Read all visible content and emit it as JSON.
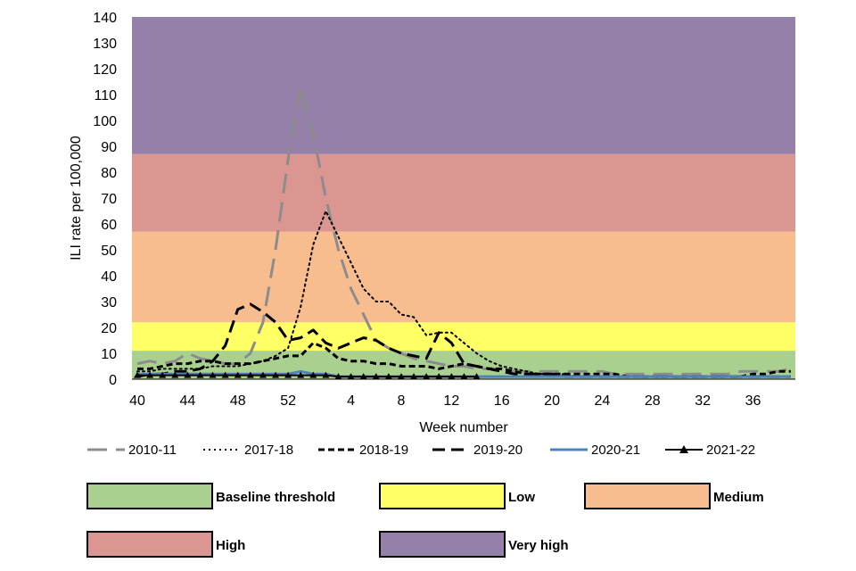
{
  "chart_data": {
    "type": "line",
    "title": "",
    "xlabel": "Week number",
    "ylabel": "ILI rate per 100,000",
    "ylim": [
      0,
      140
    ],
    "y_ticks": [
      "0",
      "10",
      "20",
      "30",
      "40",
      "50",
      "60",
      "70",
      "80",
      "90",
      "100",
      "110",
      "120",
      "130",
      "140"
    ],
    "x_tick_labels": [
      "40",
      "44",
      "48",
      "52",
      "4",
      "8",
      "12",
      "16",
      "20",
      "24",
      "28",
      "32",
      "36"
    ],
    "x_week_order": [
      40,
      41,
      42,
      43,
      44,
      45,
      46,
      47,
      48,
      49,
      50,
      51,
      52,
      53,
      1,
      2,
      3,
      4,
      5,
      6,
      7,
      8,
      9,
      10,
      11,
      12,
      13,
      14,
      15,
      16,
      17,
      18,
      19,
      20,
      21,
      22,
      23,
      24,
      25,
      26,
      27,
      28,
      29,
      30,
      31,
      32,
      33,
      34,
      35,
      36,
      37,
      38,
      39
    ],
    "threshold_bands": [
      {
        "name": "Baseline threshold",
        "from": 0,
        "to": 11,
        "color": "#a9d08e"
      },
      {
        "name": "Low",
        "from": 11,
        "to": 22,
        "color": "#ffff66"
      },
      {
        "name": "Medium",
        "from": 22,
        "to": 57,
        "color": "#f8bd8f"
      },
      {
        "name": "High",
        "from": 57,
        "to": 87,
        "color": "#db9691"
      },
      {
        "name": "Very high",
        "from": 87,
        "to": 140,
        "color": "#9480a8"
      }
    ],
    "series": [
      {
        "name": "2010-11",
        "color": "#8c8c8c",
        "style": "longdash",
        "values": [
          6,
          7,
          6,
          7,
          10,
          8,
          7,
          6,
          6,
          10,
          22,
          50,
          85,
          113,
          95,
          70,
          50,
          35,
          25,
          15,
          12,
          10,
          8,
          7,
          6,
          5,
          5,
          4,
          4,
          4,
          3,
          3,
          3,
          3,
          3,
          3,
          3,
          3,
          2,
          2,
          2,
          2,
          2,
          2,
          2,
          2,
          2,
          2,
          3,
          3,
          3,
          3,
          4
        ]
      },
      {
        "name": "2017-18",
        "color": "#000000",
        "style": "dotted",
        "values": [
          3,
          3,
          4,
          4,
          4,
          4,
          5,
          5,
          5,
          6,
          7,
          9,
          12,
          28,
          52,
          65,
          55,
          45,
          35,
          30,
          30,
          25,
          24,
          17,
          18,
          18,
          14,
          10,
          7,
          5,
          4,
          3,
          2,
          2,
          2,
          1,
          1,
          1,
          1,
          1,
          1,
          1,
          1,
          1,
          1,
          1,
          1,
          1,
          1,
          1,
          1,
          1,
          1
        ]
      },
      {
        "name": "2018-19",
        "color": "#000000",
        "style": "shortdash",
        "values": [
          4,
          4,
          5,
          6,
          6,
          7,
          7,
          6,
          6,
          6,
          7,
          8,
          9,
          9,
          14,
          12,
          8,
          7,
          7,
          6,
          6,
          5,
          5,
          5,
          4,
          5,
          6,
          5,
          4,
          4,
          3,
          2,
          2,
          2,
          2,
          2,
          2,
          2,
          2,
          1,
          1,
          1,
          1,
          1,
          1,
          1,
          1,
          1,
          1,
          2,
          2,
          3,
          3
        ]
      },
      {
        "name": "2019-20",
        "color": "#000000",
        "style": "dash",
        "values": [
          1,
          2,
          2,
          3,
          3,
          4,
          7,
          13,
          27,
          29,
          26,
          22,
          15,
          16,
          19,
          14,
          12,
          14,
          16,
          15,
          12,
          10,
          9,
          8,
          18,
          14,
          6,
          5,
          4,
          3,
          2,
          2,
          2,
          2,
          1,
          1,
          1,
          1,
          1,
          1,
          1,
          1,
          1,
          1,
          1,
          1,
          1,
          1,
          1,
          1,
          1,
          1,
          1
        ]
      },
      {
        "name": "2020-21",
        "color": "#4f81bd",
        "style": "solid",
        "values": [
          2,
          2,
          2,
          2,
          2,
          2,
          2,
          2,
          2,
          2,
          2,
          2,
          2,
          3,
          2,
          2,
          1,
          1,
          1,
          1,
          1,
          1,
          1,
          1,
          1,
          1,
          1,
          1,
          1,
          1,
          1,
          1,
          1,
          1,
          1,
          1,
          1,
          1,
          1,
          1,
          1,
          1,
          1,
          1,
          1,
          1,
          1,
          1,
          1,
          1,
          1,
          1,
          1
        ]
      },
      {
        "name": "2021-22",
        "color": "#000000",
        "style": "triangle",
        "values": [
          1.5,
          1.5,
          1.5,
          1.5,
          1.5,
          1.5,
          1.5,
          1.5,
          1.5,
          1.5,
          1.5,
          1.5,
          1.5,
          1.5,
          1.5,
          1.5,
          1,
          1,
          1,
          1,
          1,
          1,
          1,
          1,
          1,
          1,
          1,
          1
        ]
      }
    ]
  }
}
